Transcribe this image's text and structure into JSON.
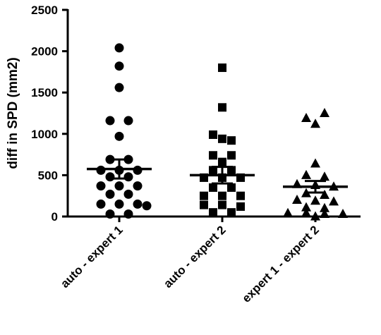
{
  "chart_data": {
    "type": "scatter",
    "title": "",
    "xlabel": "",
    "ylabel": "diff in SPD (mm2)",
    "ylim": [
      0,
      2500
    ],
    "yticks": [
      0,
      500,
      1000,
      1500,
      2000,
      2500
    ],
    "yticks_labels": [
      "0",
      "500",
      "1000",
      "1500",
      "2000",
      "2500"
    ],
    "grid": false,
    "legend": "none",
    "categories": [
      "auto - expert 1",
      "auto - expert 2",
      "expert 1 - expert 2"
    ],
    "series": [
      {
        "category": "auto - expert 1",
        "marker": "circle",
        "mean": 575,
        "sem_low": 460,
        "sem_high": 690,
        "points": [
          {
            "offset": 0,
            "y": 2040
          },
          {
            "offset": 0,
            "y": 1820
          },
          {
            "offset": 0,
            "y": 1560
          },
          {
            "offset": -1,
            "y": 1160
          },
          {
            "offset": 1,
            "y": 1160
          },
          {
            "offset": 0,
            "y": 970
          },
          {
            "offset": -1,
            "y": 690
          },
          {
            "offset": 1,
            "y": 690
          },
          {
            "offset": -2,
            "y": 560
          },
          {
            "offset": 0,
            "y": 560
          },
          {
            "offset": 2,
            "y": 560
          },
          {
            "offset": -1,
            "y": 480
          },
          {
            "offset": 1,
            "y": 480
          },
          {
            "offset": -2,
            "y": 370
          },
          {
            "offset": 0,
            "y": 370
          },
          {
            "offset": 2,
            "y": 370
          },
          {
            "offset": -1,
            "y": 270
          },
          {
            "offset": 1,
            "y": 270
          },
          {
            "offset": -2,
            "y": 150
          },
          {
            "offset": 0,
            "y": 150
          },
          {
            "offset": 2,
            "y": 150
          },
          {
            "offset": 3,
            "y": 130
          },
          {
            "offset": -1,
            "y": 30
          },
          {
            "offset": 1,
            "y": 30
          }
        ]
      },
      {
        "category": "auto - expert 2",
        "marker": "square",
        "mean": 500,
        "sem_low": 400,
        "sem_high": 600,
        "points": [
          {
            "offset": 0,
            "y": 1800
          },
          {
            "offset": 0,
            "y": 1320
          },
          {
            "offset": -1,
            "y": 990
          },
          {
            "offset": 0,
            "y": 940
          },
          {
            "offset": 1,
            "y": 920
          },
          {
            "offset": -1,
            "y": 740
          },
          {
            "offset": 1,
            "y": 740
          },
          {
            "offset": 0,
            "y": 660
          },
          {
            "offset": -1,
            "y": 560
          },
          {
            "offset": 1,
            "y": 560
          },
          {
            "offset": -2,
            "y": 470
          },
          {
            "offset": 0,
            "y": 470
          },
          {
            "offset": 2,
            "y": 470
          },
          {
            "offset": -1,
            "y": 350
          },
          {
            "offset": 1,
            "y": 350
          },
          {
            "offset": -2,
            "y": 250
          },
          {
            "offset": 0,
            "y": 250
          },
          {
            "offset": 2,
            "y": 250
          },
          {
            "offset": -2,
            "y": 140
          },
          {
            "offset": 0,
            "y": 140
          },
          {
            "offset": 2,
            "y": 120
          },
          {
            "offset": -1,
            "y": 50
          },
          {
            "offset": 1,
            "y": 50
          }
        ]
      },
      {
        "category": "expert 1 - expert 2",
        "marker": "triangle",
        "mean": 360,
        "sem_low": 290,
        "sem_high": 430,
        "points": [
          {
            "offset": 1,
            "y": 1250
          },
          {
            "offset": -1,
            "y": 1190
          },
          {
            "offset": 0,
            "y": 1120
          },
          {
            "offset": 0,
            "y": 640
          },
          {
            "offset": -1,
            "y": 500
          },
          {
            "offset": 1,
            "y": 480
          },
          {
            "offset": -2,
            "y": 390
          },
          {
            "offset": 0,
            "y": 380
          },
          {
            "offset": 2,
            "y": 360
          },
          {
            "offset": -1,
            "y": 280
          },
          {
            "offset": 1,
            "y": 260
          },
          {
            "offset": -2,
            "y": 200
          },
          {
            "offset": 0,
            "y": 190
          },
          {
            "offset": 2,
            "y": 180
          },
          {
            "offset": -1,
            "y": 110
          },
          {
            "offset": 1,
            "y": 100
          },
          {
            "offset": -3,
            "y": 40
          },
          {
            "offset": -1,
            "y": 40
          },
          {
            "offset": 1,
            "y": 30
          },
          {
            "offset": 3,
            "y": 30
          },
          {
            "offset": 0,
            "y": 0
          }
        ]
      }
    ],
    "colors": {
      "marker": "#000000",
      "axis": "#000000",
      "background": "#ffffff"
    }
  }
}
